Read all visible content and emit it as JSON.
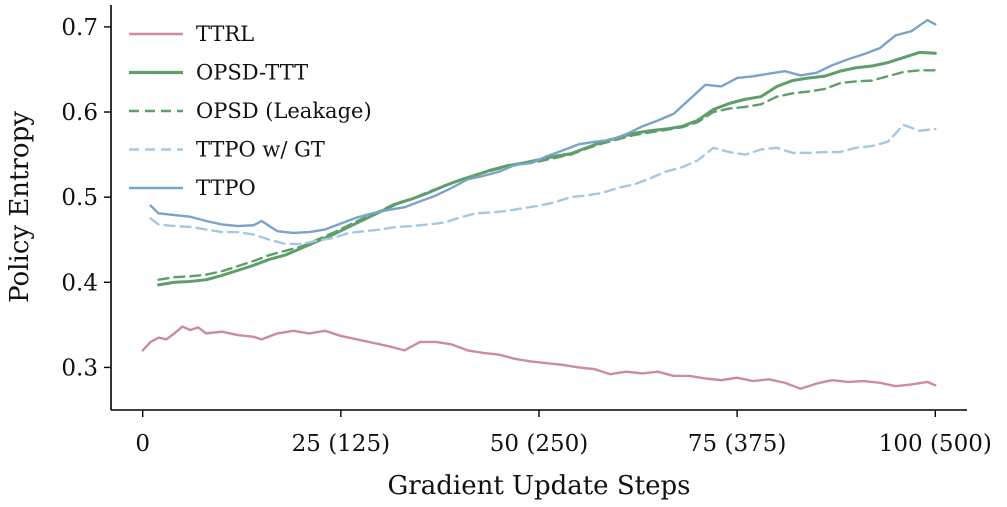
{
  "chart_data": {
    "type": "line",
    "xlabel": "Gradient Update Steps",
    "ylabel": "Policy Entropy",
    "xlim": [
      -4,
      104
    ],
    "ylim": [
      0.25,
      0.7257
    ],
    "x_ticks": [
      {
        "value": 0,
        "label": "0"
      },
      {
        "value": 25,
        "label": "25 (125)"
      },
      {
        "value": 50,
        "label": "50 (250)"
      },
      {
        "value": 75,
        "label": "75 (375)"
      },
      {
        "value": 100,
        "label": "100 (500)"
      }
    ],
    "y_ticks": [
      {
        "value": 0.3,
        "label": "0.3"
      },
      {
        "value": 0.4,
        "label": "0.4"
      },
      {
        "value": 0.5,
        "label": "0.5"
      },
      {
        "value": 0.6,
        "label": "0.6"
      },
      {
        "value": 0.7,
        "label": "0.7"
      }
    ],
    "grid": false,
    "legend_position": "top-left",
    "series": [
      {
        "name": "TTRL",
        "color": "#cc8aa3",
        "dash": "solid",
        "points": [
          [
            0,
            0.32
          ],
          [
            1,
            0.33
          ],
          [
            2,
            0.335
          ],
          [
            3,
            0.333
          ],
          [
            4,
            0.34
          ],
          [
            5,
            0.348
          ],
          [
            6,
            0.344
          ],
          [
            7,
            0.347
          ],
          [
            8,
            0.34
          ],
          [
            10,
            0.342
          ],
          [
            12,
            0.338
          ],
          [
            14,
            0.336
          ],
          [
            15,
            0.333
          ],
          [
            17,
            0.34
          ],
          [
            19,
            0.343
          ],
          [
            21,
            0.34
          ],
          [
            23,
            0.343
          ],
          [
            25,
            0.337
          ],
          [
            27,
            0.333
          ],
          [
            29,
            0.329
          ],
          [
            31,
            0.325
          ],
          [
            33,
            0.32
          ],
          [
            35,
            0.33
          ],
          [
            37,
            0.33
          ],
          [
            39,
            0.327
          ],
          [
            41,
            0.32
          ],
          [
            43,
            0.317
          ],
          [
            45,
            0.315
          ],
          [
            47,
            0.31
          ],
          [
            49,
            0.307
          ],
          [
            51,
            0.305
          ],
          [
            53,
            0.303
          ],
          [
            55,
            0.3
          ],
          [
            57,
            0.298
          ],
          [
            59,
            0.292
          ],
          [
            61,
            0.295
          ],
          [
            63,
            0.293
          ],
          [
            65,
            0.295
          ],
          [
            67,
            0.29
          ],
          [
            69,
            0.29
          ],
          [
            71,
            0.287
          ],
          [
            73,
            0.285
          ],
          [
            75,
            0.288
          ],
          [
            77,
            0.284
          ],
          [
            79,
            0.286
          ],
          [
            81,
            0.282
          ],
          [
            83,
            0.275
          ],
          [
            85,
            0.281
          ],
          [
            87,
            0.285
          ],
          [
            89,
            0.283
          ],
          [
            91,
            0.284
          ],
          [
            93,
            0.282
          ],
          [
            95,
            0.278
          ],
          [
            97,
            0.28
          ],
          [
            99,
            0.283
          ],
          [
            100,
            0.279
          ]
        ]
      },
      {
        "name": "OPSD-TTT",
        "color": "#5e9e6b",
        "dash": "solid",
        "points": [
          [
            2,
            0.397
          ],
          [
            4,
            0.4
          ],
          [
            6,
            0.401
          ],
          [
            8,
            0.403
          ],
          [
            10,
            0.408
          ],
          [
            12,
            0.414
          ],
          [
            14,
            0.42
          ],
          [
            16,
            0.427
          ],
          [
            18,
            0.432
          ],
          [
            20,
            0.44
          ],
          [
            22,
            0.448
          ],
          [
            24,
            0.456
          ],
          [
            26,
            0.465
          ],
          [
            28,
            0.474
          ],
          [
            30,
            0.483
          ],
          [
            32,
            0.492
          ],
          [
            34,
            0.498
          ],
          [
            36,
            0.505
          ],
          [
            38,
            0.513
          ],
          [
            40,
            0.52
          ],
          [
            42,
            0.526
          ],
          [
            44,
            0.532
          ],
          [
            46,
            0.537
          ],
          [
            48,
            0.54
          ],
          [
            50,
            0.544
          ],
          [
            52,
            0.548
          ],
          [
            54,
            0.551
          ],
          [
            56,
            0.558
          ],
          [
            58,
            0.565
          ],
          [
            60,
            0.57
          ],
          [
            62,
            0.575
          ],
          [
            64,
            0.578
          ],
          [
            66,
            0.58
          ],
          [
            68,
            0.583
          ],
          [
            70,
            0.59
          ],
          [
            72,
            0.603
          ],
          [
            74,
            0.61
          ],
          [
            76,
            0.615
          ],
          [
            78,
            0.618
          ],
          [
            80,
            0.63
          ],
          [
            82,
            0.637
          ],
          [
            84,
            0.64
          ],
          [
            86,
            0.642
          ],
          [
            88,
            0.648
          ],
          [
            90,
            0.652
          ],
          [
            92,
            0.654
          ],
          [
            94,
            0.658
          ],
          [
            96,
            0.664
          ],
          [
            98,
            0.67
          ],
          [
            100,
            0.669
          ]
        ]
      },
      {
        "name": "OPSD (Leakage)",
        "color": "#5e9e6b",
        "dash": "dashed",
        "points": [
          [
            2,
            0.403
          ],
          [
            4,
            0.406
          ],
          [
            6,
            0.407
          ],
          [
            8,
            0.409
          ],
          [
            10,
            0.413
          ],
          [
            12,
            0.419
          ],
          [
            14,
            0.425
          ],
          [
            16,
            0.432
          ],
          [
            18,
            0.437
          ],
          [
            20,
            0.442
          ],
          [
            22,
            0.45
          ],
          [
            24,
            0.458
          ],
          [
            26,
            0.467
          ],
          [
            28,
            0.476
          ],
          [
            30,
            0.484
          ],
          [
            32,
            0.493
          ],
          [
            34,
            0.498
          ],
          [
            36,
            0.506
          ],
          [
            38,
            0.513
          ],
          [
            40,
            0.52
          ],
          [
            42,
            0.526
          ],
          [
            44,
            0.531
          ],
          [
            46,
            0.536
          ],
          [
            48,
            0.539
          ],
          [
            50,
            0.542
          ],
          [
            52,
            0.546
          ],
          [
            54,
            0.55
          ],
          [
            56,
            0.557
          ],
          [
            58,
            0.563
          ],
          [
            60,
            0.568
          ],
          [
            62,
            0.573
          ],
          [
            64,
            0.576
          ],
          [
            66,
            0.579
          ],
          [
            68,
            0.582
          ],
          [
            70,
            0.588
          ],
          [
            72,
            0.6
          ],
          [
            74,
            0.604
          ],
          [
            76,
            0.606
          ],
          [
            78,
            0.609
          ],
          [
            80,
            0.618
          ],
          [
            82,
            0.622
          ],
          [
            84,
            0.624
          ],
          [
            86,
            0.627
          ],
          [
            88,
            0.634
          ],
          [
            90,
            0.636
          ],
          [
            92,
            0.637
          ],
          [
            94,
            0.642
          ],
          [
            96,
            0.647
          ],
          [
            98,
            0.649
          ],
          [
            100,
            0.649
          ]
        ]
      },
      {
        "name": "TTPO w/ GT",
        "color": "#a3c8e1",
        "dash": "dashed",
        "points": [
          [
            1,
            0.475
          ],
          [
            2,
            0.468
          ],
          [
            4,
            0.466
          ],
          [
            6,
            0.465
          ],
          [
            8,
            0.462
          ],
          [
            10,
            0.459
          ],
          [
            12,
            0.459
          ],
          [
            14,
            0.456
          ],
          [
            16,
            0.45
          ],
          [
            18,
            0.445
          ],
          [
            20,
            0.445
          ],
          [
            22,
            0.449
          ],
          [
            24,
            0.452
          ],
          [
            26,
            0.458
          ],
          [
            28,
            0.46
          ],
          [
            30,
            0.462
          ],
          [
            32,
            0.465
          ],
          [
            34,
            0.466
          ],
          [
            36,
            0.468
          ],
          [
            38,
            0.47
          ],
          [
            40,
            0.476
          ],
          [
            42,
            0.481
          ],
          [
            44,
            0.482
          ],
          [
            46,
            0.484
          ],
          [
            48,
            0.487
          ],
          [
            50,
            0.49
          ],
          [
            52,
            0.494
          ],
          [
            54,
            0.5
          ],
          [
            56,
            0.502
          ],
          [
            58,
            0.505
          ],
          [
            60,
            0.511
          ],
          [
            62,
            0.515
          ],
          [
            64,
            0.522
          ],
          [
            66,
            0.53
          ],
          [
            68,
            0.535
          ],
          [
            70,
            0.543
          ],
          [
            72,
            0.558
          ],
          [
            74,
            0.553
          ],
          [
            76,
            0.55
          ],
          [
            78,
            0.556
          ],
          [
            80,
            0.558
          ],
          [
            82,
            0.552
          ],
          [
            84,
            0.552
          ],
          [
            86,
            0.553
          ],
          [
            88,
            0.553
          ],
          [
            90,
            0.558
          ],
          [
            92,
            0.56
          ],
          [
            94,
            0.565
          ],
          [
            96,
            0.585
          ],
          [
            98,
            0.578
          ],
          [
            100,
            0.58
          ]
        ]
      },
      {
        "name": "TTPO",
        "color": "#7ba3c8",
        "dash": "solid",
        "points": [
          [
            1,
            0.49
          ],
          [
            2,
            0.481
          ],
          [
            4,
            0.479
          ],
          [
            6,
            0.477
          ],
          [
            8,
            0.472
          ],
          [
            10,
            0.468
          ],
          [
            12,
            0.466
          ],
          [
            14,
            0.467
          ],
          [
            15,
            0.472
          ],
          [
            17,
            0.46
          ],
          [
            19,
            0.458
          ],
          [
            21,
            0.459
          ],
          [
            23,
            0.462
          ],
          [
            25,
            0.469
          ],
          [
            27,
            0.476
          ],
          [
            29,
            0.481
          ],
          [
            31,
            0.485
          ],
          [
            33,
            0.488
          ],
          [
            35,
            0.495
          ],
          [
            37,
            0.502
          ],
          [
            39,
            0.511
          ],
          [
            41,
            0.521
          ],
          [
            43,
            0.525
          ],
          [
            45,
            0.53
          ],
          [
            47,
            0.538
          ],
          [
            49,
            0.54
          ],
          [
            51,
            0.548
          ],
          [
            53,
            0.555
          ],
          [
            55,
            0.562
          ],
          [
            57,
            0.565
          ],
          [
            59,
            0.567
          ],
          [
            61,
            0.574
          ],
          [
            63,
            0.583
          ],
          [
            65,
            0.59
          ],
          [
            67,
            0.598
          ],
          [
            69,
            0.615
          ],
          [
            71,
            0.632
          ],
          [
            73,
            0.63
          ],
          [
            75,
            0.64
          ],
          [
            77,
            0.642
          ],
          [
            79,
            0.645
          ],
          [
            81,
            0.648
          ],
          [
            83,
            0.643
          ],
          [
            85,
            0.646
          ],
          [
            87,
            0.655
          ],
          [
            89,
            0.662
          ],
          [
            91,
            0.668
          ],
          [
            93,
            0.675
          ],
          [
            95,
            0.69
          ],
          [
            97,
            0.695
          ],
          [
            99,
            0.708
          ],
          [
            100,
            0.703
          ]
        ]
      }
    ]
  }
}
